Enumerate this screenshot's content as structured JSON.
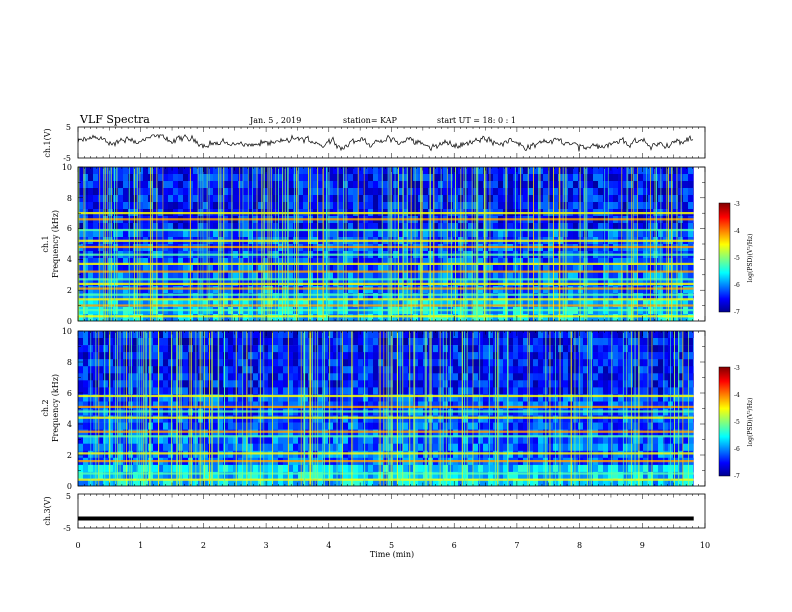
{
  "header": {
    "title": "VLF Spectra",
    "date": "Jan. 5 , 2019",
    "station": "station= KAP",
    "start": "start UT = 18: 0 : 1"
  },
  "chart_data": [
    {
      "type": "line",
      "panel": "ch1-waveform",
      "ylabel": "ch.1(V)",
      "ylim": [
        -5,
        5
      ],
      "yticks": [
        "5",
        "-5"
      ],
      "xlim": [
        0,
        10
      ],
      "trace_end_min": 9.82,
      "amplitude_range_v": [
        -3.0,
        2.5
      ],
      "color": "#000000"
    },
    {
      "type": "heatmap",
      "panel": "ch1-spectrogram",
      "ylabel_line1": "ch.1",
      "ylabel_line2": "Frequency (kHz)",
      "ylim": [
        0,
        10
      ],
      "yticks": [
        "0",
        "2",
        "4",
        "6",
        "8",
        "10"
      ],
      "xlim": [
        0,
        10
      ],
      "data_end_min": 9.82,
      "bands_khz": [
        0.3,
        0.7,
        1.0,
        1.4,
        1.7,
        2.1,
        2.4,
        2.7,
        3.2,
        3.7,
        4.3,
        4.8,
        5.2,
        5.9,
        6.6,
        7.0
      ],
      "colorbar": {
        "label": "log(PSD)(V²/Hz)",
        "range": [
          -7,
          -3
        ],
        "ticks": [
          "-3",
          "-4",
          "-5",
          "-6",
          "-7"
        ]
      }
    },
    {
      "type": "heatmap",
      "panel": "ch2-spectrogram",
      "ylabel_line1": "ch.2",
      "ylabel_line2": "Frequency (kHz)",
      "ylim": [
        0,
        10
      ],
      "yticks": [
        "0",
        "2",
        "4",
        "6",
        "8",
        "10"
      ],
      "xlim": [
        0,
        10
      ],
      "data_end_min": 9.82,
      "bands_khz": [
        0.4,
        0.8,
        1.6,
        2.1,
        3.2,
        3.5,
        4.4,
        4.8,
        5.1,
        5.8
      ],
      "colorbar": {
        "label": "log(PSD)(V²/Hz)",
        "range": [
          -7,
          -3
        ],
        "ticks": [
          "-3",
          "-4",
          "-5",
          "-6",
          "-7"
        ]
      }
    },
    {
      "type": "line",
      "panel": "ch3-waveform",
      "ylabel": "ch.3(V)",
      "ylim": [
        -5,
        5
      ],
      "yticks": [
        "5",
        "-5"
      ],
      "xlim": [
        0,
        10
      ],
      "trace_end_min": 9.82,
      "constant_v": -2.2,
      "xlabel": "Time (min)",
      "xticks": [
        "0",
        "1",
        "2",
        "3",
        "4",
        "5",
        "6",
        "7",
        "8",
        "9",
        "10"
      ],
      "color": "#000000"
    }
  ]
}
